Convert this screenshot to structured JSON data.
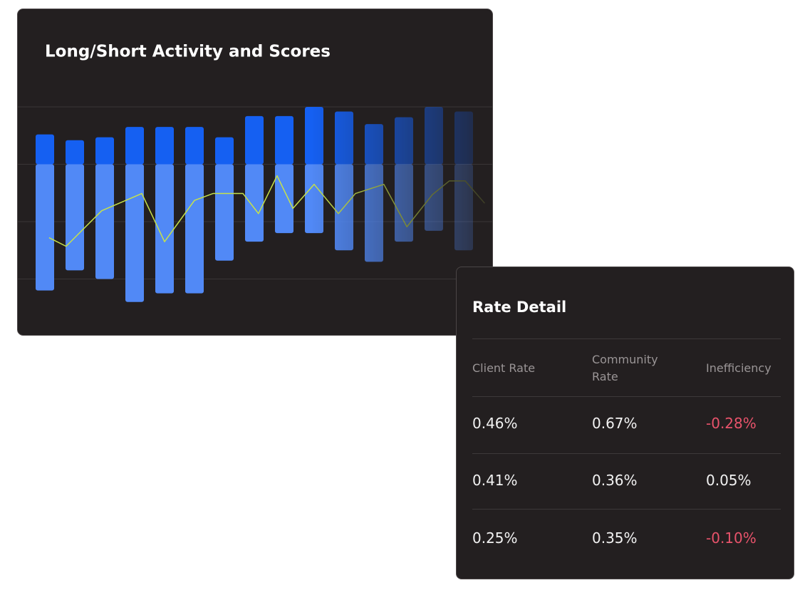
{
  "chart_data": {
    "type": "bar",
    "title": "Long/Short Activity and Scores",
    "categories": [
      null,
      null,
      null,
      null,
      null,
      null,
      null,
      null,
      null,
      null,
      null,
      null,
      null,
      null,
      null
    ],
    "series": [
      {
        "color": "#1560f2",
        "values": [
          0.52,
          0.42,
          0.47,
          0.65,
          0.65,
          0.65,
          0.47,
          0.84,
          0.84,
          1.0,
          0.92,
          0.7,
          0.82,
          1.0,
          0.92
        ]
      },
      {
        "color": "#5189f6",
        "values": [
          -2.2,
          -1.85,
          -2.0,
          -2.4,
          -2.25,
          -2.25,
          -1.68,
          -1.35,
          -1.2,
          -1.2,
          -1.5,
          -1.7,
          -1.35,
          -1.16,
          -1.5
        ]
      },
      {
        "type": "line",
        "color": "#c6e24a",
        "x": [
          0.14,
          0.71,
          1.9,
          3.24,
          4,
          5,
          5.62,
          6.62,
          7.14,
          7.76,
          8.29,
          9,
          9.81,
          10.38,
          11.33,
          12.1,
          12.95,
          13.52,
          14.05,
          14.7
        ],
        "values": [
          -1.28,
          -1.43,
          -0.81,
          -0.51,
          -1.35,
          -0.63,
          -0.51,
          -0.51,
          -0.86,
          -0.2,
          -0.77,
          -0.35,
          -0.86,
          -0.51,
          -0.35,
          -1.09,
          -0.53,
          -0.29,
          -0.29,
          -0.68
        ]
      }
    ],
    "xlim": [
      -0.5,
      15
    ],
    "ylim": [
      -2.5,
      1
    ],
    "yticks": [
      -2,
      -1,
      0,
      1
    ],
    "grid": true
  },
  "table": {
    "title": "Rate Detail",
    "columns": [
      "Client Rate",
      "Community Rate",
      "Inefficiency"
    ],
    "rows": [
      [
        "0.46%",
        "0.67%",
        "-0.28%"
      ],
      [
        "0.41%",
        "0.36%",
        "0.05%"
      ],
      [
        "0.25%",
        "0.35%",
        "-0.10%"
      ]
    ]
  }
}
